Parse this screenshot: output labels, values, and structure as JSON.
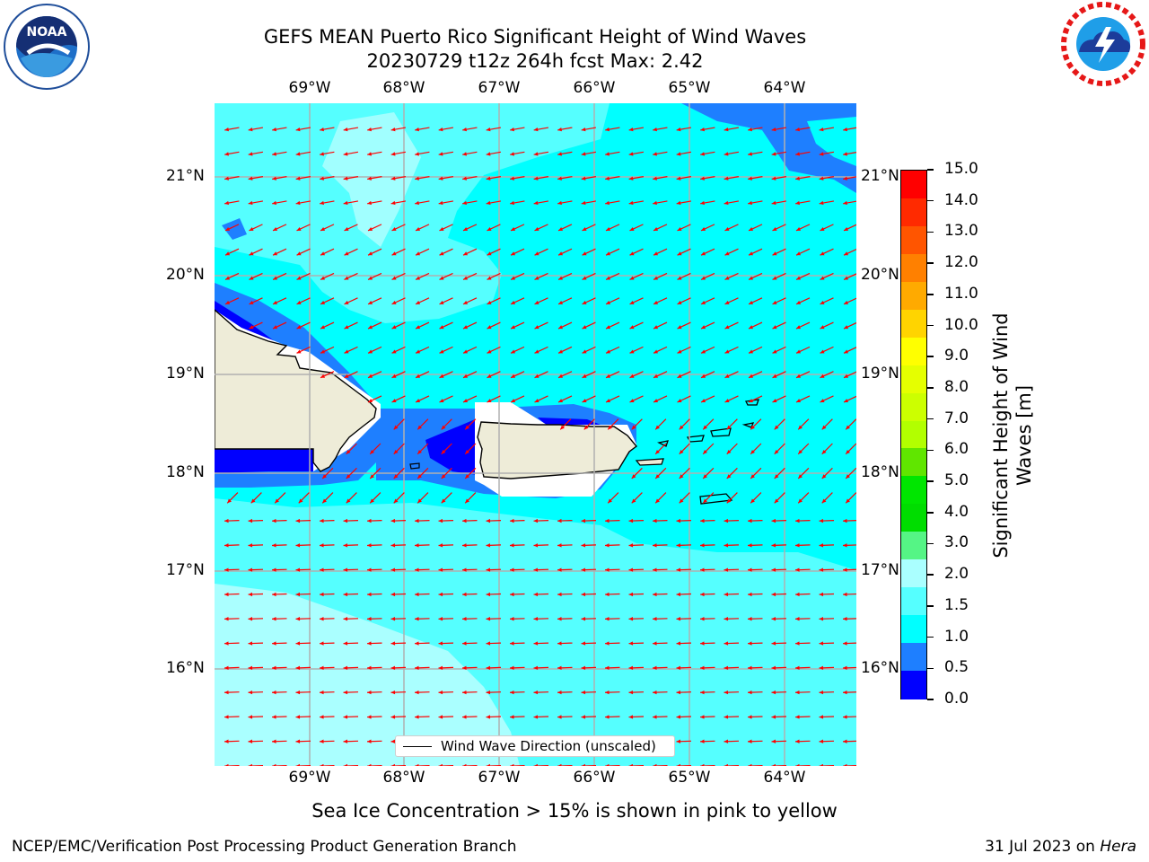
{
  "header": {
    "title_line1": "GEFS MEAN Puerto Rico Significant Height of Wind Waves",
    "title_line2": "20230729 t12z 264h fcst   Max: 2.42"
  },
  "logos": {
    "left": {
      "name": "noaa-logo",
      "text": "NOAA"
    },
    "right": {
      "name": "nws-logo",
      "text": "NATIONAL WEATHER SERVICE"
    }
  },
  "map": {
    "longitude_labels": [
      "69°W",
      "68°W",
      "67°W",
      "66°W",
      "65°W",
      "64°W"
    ],
    "latitude_labels": [
      "21°N",
      "20°N",
      "19°N",
      "18°N",
      "17°N",
      "16°N"
    ],
    "legend": "Wind Wave Direction (unscaled)"
  },
  "colorbar": {
    "label_line1": "Significant Height of Wind",
    "label_line2": "Waves [m]",
    "ticks": [
      "15.0",
      "14.0",
      "13.0",
      "12.0",
      "11.0",
      "10.0",
      "9.0",
      "8.0",
      "7.0",
      "6.0",
      "5.0",
      "4.0",
      "3.0",
      "2.0",
      "1.5",
      "1.0",
      "0.5",
      "0.0"
    ],
    "colors": [
      "#ff0000",
      "#ff2a00",
      "#ff5500",
      "#ff8000",
      "#ffaa00",
      "#ffd400",
      "#ffff00",
      "#e5ff00",
      "#ccff00",
      "#b2ff00",
      "#60e600",
      "#00e600",
      "#00dd00",
      "#55f585",
      "#aaffff",
      "#55ffff",
      "#00ffff",
      "#1e7fff",
      "#0000ff"
    ]
  },
  "colors": {
    "ocean_base": "#00ffff",
    "ocean_light": "#55ffff",
    "ocean_lighter": "#aaffff",
    "ocean_mid": "#1e7fff",
    "ocean_dark": "#0000ff",
    "land": "#eeecd8",
    "arrow": "#ff0000"
  },
  "footer": {
    "caption": "Sea Ice Concentration > 15% is shown in pink to yellow",
    "left": "NCEP/EMC/Verification Post Processing Product Generation Branch",
    "right_prefix": "31 Jul 2023 on ",
    "right_host": "Hera"
  }
}
